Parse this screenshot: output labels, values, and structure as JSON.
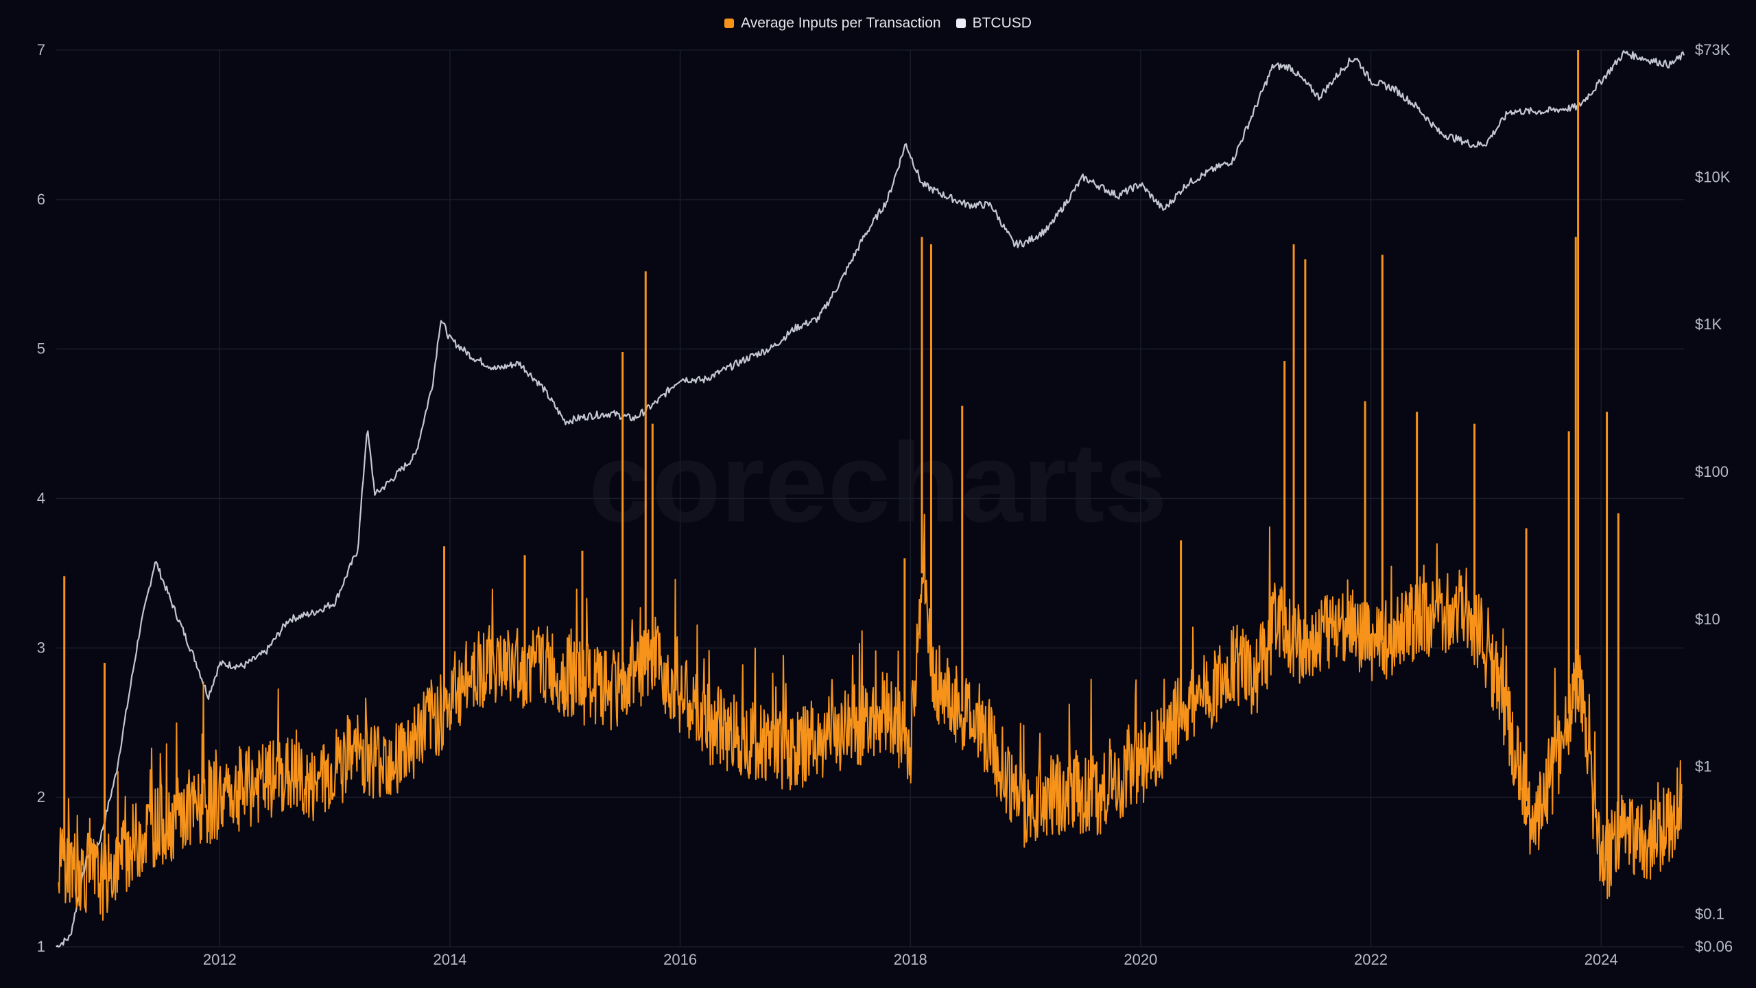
{
  "chart_data": {
    "type": "line",
    "watermark": "corecharts",
    "x_ticks": [
      "2012",
      "2014",
      "2016",
      "2018",
      "2020",
      "2022",
      "2024"
    ],
    "x_range": [
      2010.58,
      2024.72
    ],
    "y_left": {
      "ticks": [
        "1",
        "2",
        "3",
        "4",
        "5",
        "6",
        "7"
      ],
      "range": [
        1,
        7
      ]
    },
    "y_right": {
      "scale": "log",
      "ticks": [
        "$73K",
        "$10K",
        "$1K",
        "$100",
        "$10",
        "$1",
        "$0.1",
        "$0.06"
      ],
      "tick_values": [
        73000,
        10000,
        1000,
        100,
        10,
        1,
        0.1,
        0.06
      ],
      "range": [
        0.06,
        73000
      ]
    },
    "grid": true,
    "legend_position": "top-center",
    "series": [
      {
        "name": "Average Inputs per Transaction",
        "axis": "left",
        "color": "#f7931a",
        "x": [
          2010.6,
          2010.8,
          2011.0,
          2011.2,
          2011.4,
          2011.6,
          2011.8,
          2012.0,
          2012.2,
          2012.4,
          2012.6,
          2012.8,
          2013.0,
          2013.2,
          2013.4,
          2013.6,
          2013.8,
          2014.0,
          2014.2,
          2014.4,
          2014.6,
          2014.8,
          2015.0,
          2015.2,
          2015.4,
          2015.6,
          2015.8,
          2016.0,
          2016.2,
          2016.4,
          2016.6,
          2016.8,
          2017.0,
          2017.2,
          2017.4,
          2017.6,
          2017.8,
          2018.0,
          2018.1,
          2018.2,
          2018.4,
          2018.6,
          2018.8,
          2019.0,
          2019.2,
          2019.4,
          2019.6,
          2019.8,
          2020.0,
          2020.2,
          2020.4,
          2020.6,
          2020.8,
          2021.0,
          2021.2,
          2021.4,
          2021.6,
          2021.8,
          2022.0,
          2022.2,
          2022.4,
          2022.6,
          2022.8,
          2023.0,
          2023.2,
          2023.4,
          2023.6,
          2023.8,
          2024.0,
          2024.2,
          2024.4,
          2024.6,
          2024.7
        ],
        "y": [
          1.6,
          1.5,
          1.45,
          1.65,
          1.8,
          1.85,
          1.9,
          2.0,
          2.05,
          2.1,
          2.15,
          2.05,
          2.2,
          2.3,
          2.25,
          2.3,
          2.5,
          2.6,
          2.85,
          2.9,
          2.85,
          2.9,
          2.8,
          2.75,
          2.7,
          2.8,
          2.9,
          2.7,
          2.5,
          2.45,
          2.4,
          2.35,
          2.3,
          2.4,
          2.45,
          2.5,
          2.6,
          2.3,
          3.5,
          2.8,
          2.6,
          2.5,
          2.2,
          1.9,
          2.0,
          2.05,
          2.0,
          2.1,
          2.2,
          2.4,
          2.6,
          2.7,
          2.9,
          2.8,
          3.2,
          3.0,
          3.1,
          3.2,
          3.0,
          3.1,
          3.2,
          3.2,
          3.3,
          3.0,
          2.5,
          1.8,
          2.2,
          2.8,
          1.5,
          1.8,
          1.7,
          1.8,
          2.0
        ],
        "peaks": [
          {
            "x": 2010.65,
            "y": 3.48
          },
          {
            "x": 2011.0,
            "y": 2.9
          },
          {
            "x": 2013.95,
            "y": 3.68
          },
          {
            "x": 2014.65,
            "y": 3.62
          },
          {
            "x": 2015.15,
            "y": 3.65
          },
          {
            "x": 2015.5,
            "y": 4.98
          },
          {
            "x": 2015.7,
            "y": 5.52
          },
          {
            "x": 2015.76,
            "y": 4.5
          },
          {
            "x": 2017.95,
            "y": 3.6
          },
          {
            "x": 2018.1,
            "y": 5.75
          },
          {
            "x": 2018.18,
            "y": 5.7
          },
          {
            "x": 2018.45,
            "y": 4.62
          },
          {
            "x": 2020.35,
            "y": 3.72
          },
          {
            "x": 2021.25,
            "y": 4.92
          },
          {
            "x": 2021.33,
            "y": 5.7
          },
          {
            "x": 2021.43,
            "y": 5.6
          },
          {
            "x": 2021.95,
            "y": 4.65
          },
          {
            "x": 2022.1,
            "y": 5.63
          },
          {
            "x": 2022.4,
            "y": 4.58
          },
          {
            "x": 2022.9,
            "y": 4.5
          },
          {
            "x": 2023.35,
            "y": 3.8
          },
          {
            "x": 2023.72,
            "y": 4.45
          },
          {
            "x": 2023.78,
            "y": 5.75
          },
          {
            "x": 2023.8,
            "y": 7.0
          },
          {
            "x": 2024.05,
            "y": 4.58
          },
          {
            "x": 2024.15,
            "y": 3.9
          }
        ]
      },
      {
        "name": "BTCUSD",
        "axis": "right",
        "color": "#c4c6d0",
        "x": [
          2010.58,
          2010.7,
          2010.85,
          2010.95,
          2011.1,
          2011.3,
          2011.44,
          2011.6,
          2011.8,
          2011.9,
          2012.0,
          2012.2,
          2012.4,
          2012.6,
          2012.8,
          2013.0,
          2013.2,
          2013.28,
          2013.35,
          2013.5,
          2013.7,
          2013.85,
          2013.92,
          2014.0,
          2014.2,
          2014.4,
          2014.6,
          2014.8,
          2015.0,
          2015.2,
          2015.4,
          2015.6,
          2015.8,
          2016.0,
          2016.2,
          2016.4,
          2016.6,
          2016.8,
          2017.0,
          2017.2,
          2017.4,
          2017.6,
          2017.8,
          2017.96,
          2018.1,
          2018.3,
          2018.5,
          2018.7,
          2018.9,
          2019.0,
          2019.2,
          2019.5,
          2019.8,
          2020.0,
          2020.2,
          2020.4,
          2020.6,
          2020.8,
          2021.0,
          2021.15,
          2021.3,
          2021.55,
          2021.8,
          2021.87,
          2022.0,
          2022.2,
          2022.4,
          2022.6,
          2022.9,
          2023.0,
          2023.2,
          2023.5,
          2023.8,
          2024.0,
          2024.2,
          2024.4,
          2024.6,
          2024.72
        ],
        "y": [
          0.06,
          0.07,
          0.25,
          0.3,
          0.9,
          8,
          25,
          12,
          5,
          3,
          5,
          4.8,
          6,
          10,
          11,
          13,
          30,
          200,
          70,
          90,
          130,
          400,
          1100,
          800,
          600,
          500,
          550,
          380,
          220,
          240,
          250,
          230,
          300,
          430,
          420,
          500,
          600,
          700,
          950,
          1100,
          2000,
          4000,
          7000,
          17000,
          9000,
          7500,
          6500,
          6500,
          3500,
          3600,
          4500,
          10000,
          7500,
          9000,
          6000,
          9000,
          11000,
          13000,
          30000,
          57000,
          56000,
          35000,
          60000,
          65000,
          45000,
          40000,
          30000,
          20000,
          16500,
          17000,
          28000,
          28000,
          30000,
          45000,
          70000,
          63000,
          58000,
          68000
        ]
      }
    ]
  }
}
